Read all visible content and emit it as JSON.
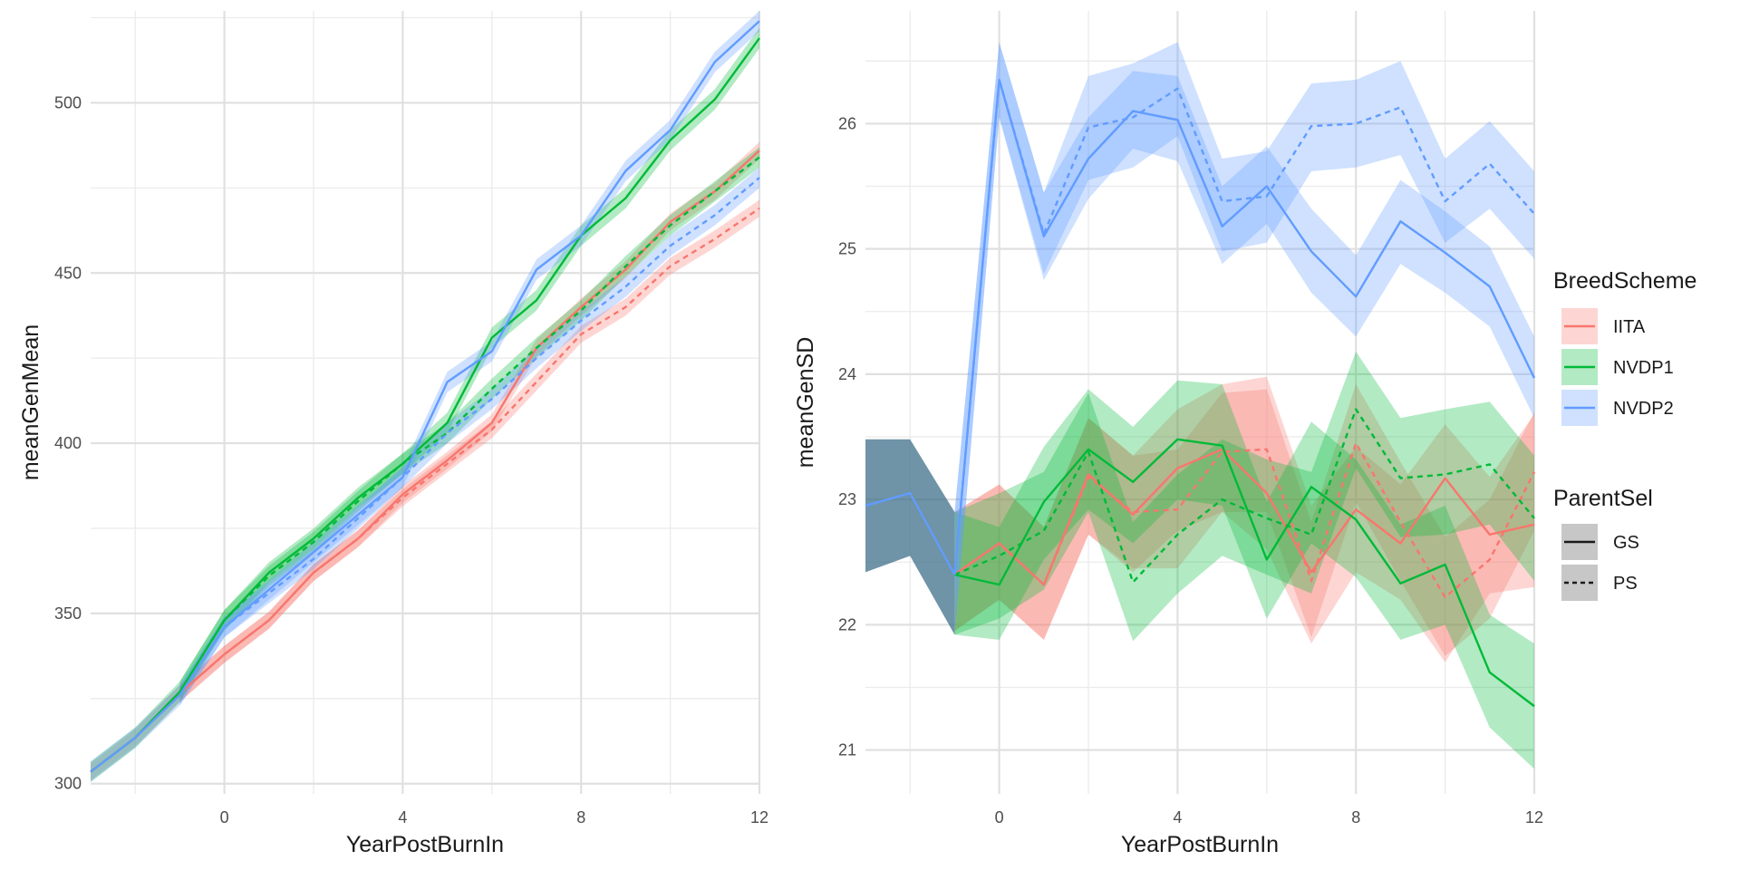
{
  "chart_data": [
    {
      "type": "line",
      "xlabel": "YearPostBurnIn",
      "ylabel": "meanGenMean",
      "xlim": [
        -3,
        12
      ],
      "ylim": [
        297,
        527
      ],
      "x_ticks": [
        0,
        4,
        8,
        12
      ],
      "y_ticks": [
        300,
        350,
        400,
        450,
        500
      ],
      "grid": true,
      "x": [
        -3,
        -2,
        -1,
        0,
        1,
        2,
        3,
        4,
        5,
        6,
        7,
        8,
        9,
        10,
        11,
        12
      ],
      "series": [
        {
          "name": "IITA",
          "group": "IITA",
          "linetype": "GS",
          "color": "#F8766D",
          "values": [
            303.5,
            313.5,
            326.5,
            338,
            348,
            362,
            372,
            385,
            395,
            406,
            428,
            440,
            451,
            465,
            474,
            486
          ],
          "ribbon": 2.5
        },
        {
          "name": "IITA",
          "group": "IITA",
          "linetype": "PS",
          "color": "#F8766D",
          "values": [
            null,
            null,
            326.5,
            338,
            348,
            362,
            372,
            384,
            394,
            404,
            418,
            432,
            440,
            452,
            460,
            469
          ],
          "ribbon": 2.5
        },
        {
          "name": "NVDP1",
          "group": "NVDP1",
          "linetype": "GS",
          "color": "#00BA38",
          "values": [
            303.5,
            313.5,
            327,
            348,
            362,
            372,
            384,
            394,
            406,
            431,
            442,
            461,
            472,
            489,
            501,
            519
          ],
          "ribbon": 3
        },
        {
          "name": "NVDP1",
          "group": "NVDP1",
          "linetype": "PS",
          "color": "#00BA38",
          "values": [
            null,
            null,
            327,
            348,
            361,
            371,
            383,
            394,
            403,
            416,
            428,
            439,
            452,
            464,
            474,
            484
          ],
          "ribbon": 3
        },
        {
          "name": "NVDP2",
          "group": "NVDP2",
          "linetype": "GS",
          "color": "#619CFF",
          "values": [
            303.5,
            313.5,
            326,
            346,
            357,
            368,
            379,
            390,
            418,
            427,
            451,
            461,
            480,
            492,
            512,
            524
          ],
          "ribbon": 3
        },
        {
          "name": "NVDP2",
          "group": "NVDP2",
          "linetype": "PS",
          "color": "#619CFF",
          "values": [
            null,
            null,
            326,
            346,
            356,
            366,
            378,
            390,
            403,
            413,
            425,
            436,
            446,
            458,
            467,
            478
          ],
          "ribbon": 3
        }
      ]
    },
    {
      "type": "line",
      "xlabel": "YearPostBurnIn",
      "ylabel": "meanGenSD",
      "xlim": [
        -3,
        12
      ],
      "ylim": [
        20.65,
        26.9
      ],
      "x_ticks": [
        0,
        4,
        8,
        12
      ],
      "y_ticks": [
        21,
        22,
        23,
        24,
        25,
        26
      ],
      "grid": true,
      "burnin": {
        "x": [
          -3,
          -2,
          -1
        ],
        "values": [
          22.95,
          23.05,
          22.4
        ],
        "lower": [
          22.42,
          22.55,
          21.92
        ],
        "upper": [
          23.48,
          23.48,
          22.9
        ],
        "fill_color": "#3f6f8a",
        "line_color": "#619CFF"
      },
      "x": [
        -1,
        0,
        1,
        2,
        3,
        4,
        5,
        6,
        7,
        8,
        9,
        10,
        11,
        12
      ],
      "series": [
        {
          "name": "IITA",
          "linetype": "GS",
          "color": "#F8766D",
          "values": [
            22.4,
            22.65,
            22.32,
            23.2,
            22.88,
            23.25,
            23.4,
            23.05,
            22.42,
            22.92,
            22.65,
            23.17,
            22.72,
            22.8
          ],
          "lower": [
            21.95,
            22.2,
            21.88,
            22.72,
            22.42,
            22.75,
            22.9,
            22.6,
            21.85,
            22.42,
            22.2,
            21.7,
            22.25,
            22.3
          ],
          "upper": [
            22.9,
            23.12,
            22.78,
            23.65,
            23.35,
            23.72,
            23.92,
            23.98,
            22.95,
            23.42,
            23.12,
            23.6,
            23.18,
            23.68
          ]
        },
        {
          "name": "IITA",
          "linetype": "PS",
          "color": "#F8766D",
          "values": [
            22.4,
            22.65,
            22.32,
            23.18,
            22.9,
            22.92,
            23.38,
            23.4,
            22.35,
            23.45,
            22.82,
            22.22,
            22.52,
            23.22
          ],
          "lower": [
            21.95,
            22.2,
            21.88,
            22.72,
            22.45,
            22.45,
            22.9,
            22.9,
            21.9,
            22.98,
            22.35,
            21.75,
            22.05,
            22.75
          ],
          "upper": [
            22.9,
            23.12,
            22.78,
            23.65,
            23.35,
            23.4,
            23.85,
            23.88,
            22.82,
            23.92,
            23.3,
            22.7,
            23.0,
            23.7
          ]
        },
        {
          "name": "NVDP1",
          "linetype": "GS",
          "color": "#00BA38",
          "values": [
            22.4,
            22.32,
            22.98,
            23.4,
            23.14,
            23.48,
            23.43,
            22.52,
            23.1,
            22.84,
            22.33,
            22.48,
            21.62,
            21.35
          ],
          "lower": [
            21.92,
            21.88,
            22.52,
            22.92,
            22.65,
            23.0,
            22.95,
            22.05,
            22.65,
            22.38,
            21.88,
            22.0,
            21.18,
            20.85
          ],
          "upper": [
            22.9,
            22.78,
            23.42,
            23.88,
            23.58,
            23.95,
            23.92,
            22.98,
            23.62,
            23.32,
            22.8,
            22.95,
            22.08,
            21.85
          ]
        },
        {
          "name": "NVDP1",
          "linetype": "PS",
          "color": "#00BA38",
          "values": [
            22.4,
            22.55,
            22.75,
            23.38,
            22.34,
            22.72,
            23.0,
            22.85,
            22.72,
            23.72,
            23.17,
            23.2,
            23.28,
            22.85
          ],
          "lower": [
            21.92,
            22.05,
            22.28,
            22.9,
            21.87,
            22.25,
            22.55,
            22.4,
            22.25,
            23.25,
            22.7,
            22.72,
            22.8,
            22.35
          ],
          "upper": [
            22.9,
            23.05,
            23.22,
            23.85,
            22.82,
            23.2,
            23.48,
            23.32,
            23.22,
            24.18,
            23.65,
            23.72,
            23.78,
            23.35
          ]
        },
        {
          "name": "NVDP2",
          "linetype": "GS",
          "color": "#619CFF",
          "values": [
            22.4,
            26.35,
            25.1,
            25.72,
            26.1,
            26.03,
            25.18,
            25.5,
            24.98,
            24.62,
            25.22,
            24.97,
            24.7,
            23.97
          ],
          "lower": [
            21.92,
            26.05,
            24.75,
            25.4,
            25.8,
            25.7,
            24.88,
            25.2,
            24.65,
            24.3,
            24.88,
            24.65,
            24.38,
            23.65
          ],
          "upper": [
            22.9,
            26.65,
            25.45,
            26.05,
            26.42,
            26.38,
            25.5,
            25.82,
            25.32,
            24.95,
            25.55,
            25.3,
            25.02,
            24.3
          ]
        },
        {
          "name": "NVDP2",
          "linetype": "PS",
          "color": "#619CFF",
          "values": [
            22.4,
            26.35,
            25.12,
            25.97,
            26.05,
            26.28,
            25.38,
            25.42,
            25.98,
            26.0,
            26.13,
            25.38,
            25.68,
            25.28
          ],
          "lower": [
            21.92,
            26.05,
            24.8,
            25.55,
            25.65,
            25.9,
            24.98,
            25.05,
            25.62,
            25.65,
            25.75,
            25.05,
            25.32,
            24.92
          ],
          "upper": [
            22.9,
            26.65,
            25.45,
            26.38,
            26.48,
            26.65,
            25.72,
            25.78,
            26.32,
            26.35,
            26.5,
            25.72,
            26.02,
            25.62
          ]
        }
      ]
    }
  ],
  "legend": {
    "breedscheme_title": "BreedScheme",
    "breedscheme_items": [
      {
        "label": "IITA",
        "color": "#F8766D"
      },
      {
        "label": "NVDP1",
        "color": "#00BA38"
      },
      {
        "label": "NVDP2",
        "color": "#619CFF"
      }
    ],
    "parentsel_title": "ParentSel",
    "parentsel_items": [
      {
        "label": "GS",
        "dash": "solid"
      },
      {
        "label": "PS",
        "dash": "dashed"
      }
    ]
  }
}
